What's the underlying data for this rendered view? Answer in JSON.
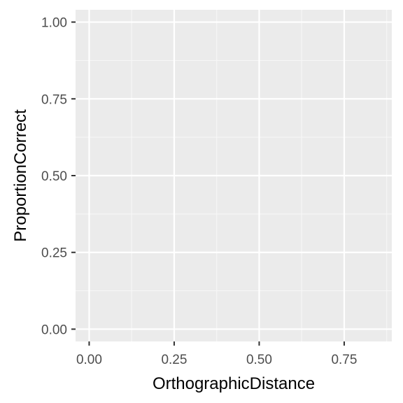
{
  "chart_data": {
    "type": "scatter",
    "title": "",
    "xlabel": "OrthographicDistance",
    "ylabel": "ProportionCorrect",
    "xlim": [
      -0.04,
      0.89
    ],
    "ylim": [
      -0.04,
      1.04
    ],
    "x_ticks": [
      0.0,
      0.25,
      0.5,
      0.75
    ],
    "x_tick_labels": [
      "0.00",
      "0.25",
      "0.50",
      "0.75"
    ],
    "y_ticks": [
      0.0,
      0.25,
      0.5,
      0.75,
      1.0
    ],
    "y_tick_labels": [
      "0.00",
      "0.25",
      "0.50",
      "0.75",
      "1.00"
    ],
    "grid": true,
    "panel_background": "#ebebeb",
    "grid_major_color": "#ffffff",
    "grid_minor_color": "#f6f6f6",
    "tick_color": "#333333",
    "series": [],
    "legend": "none"
  }
}
